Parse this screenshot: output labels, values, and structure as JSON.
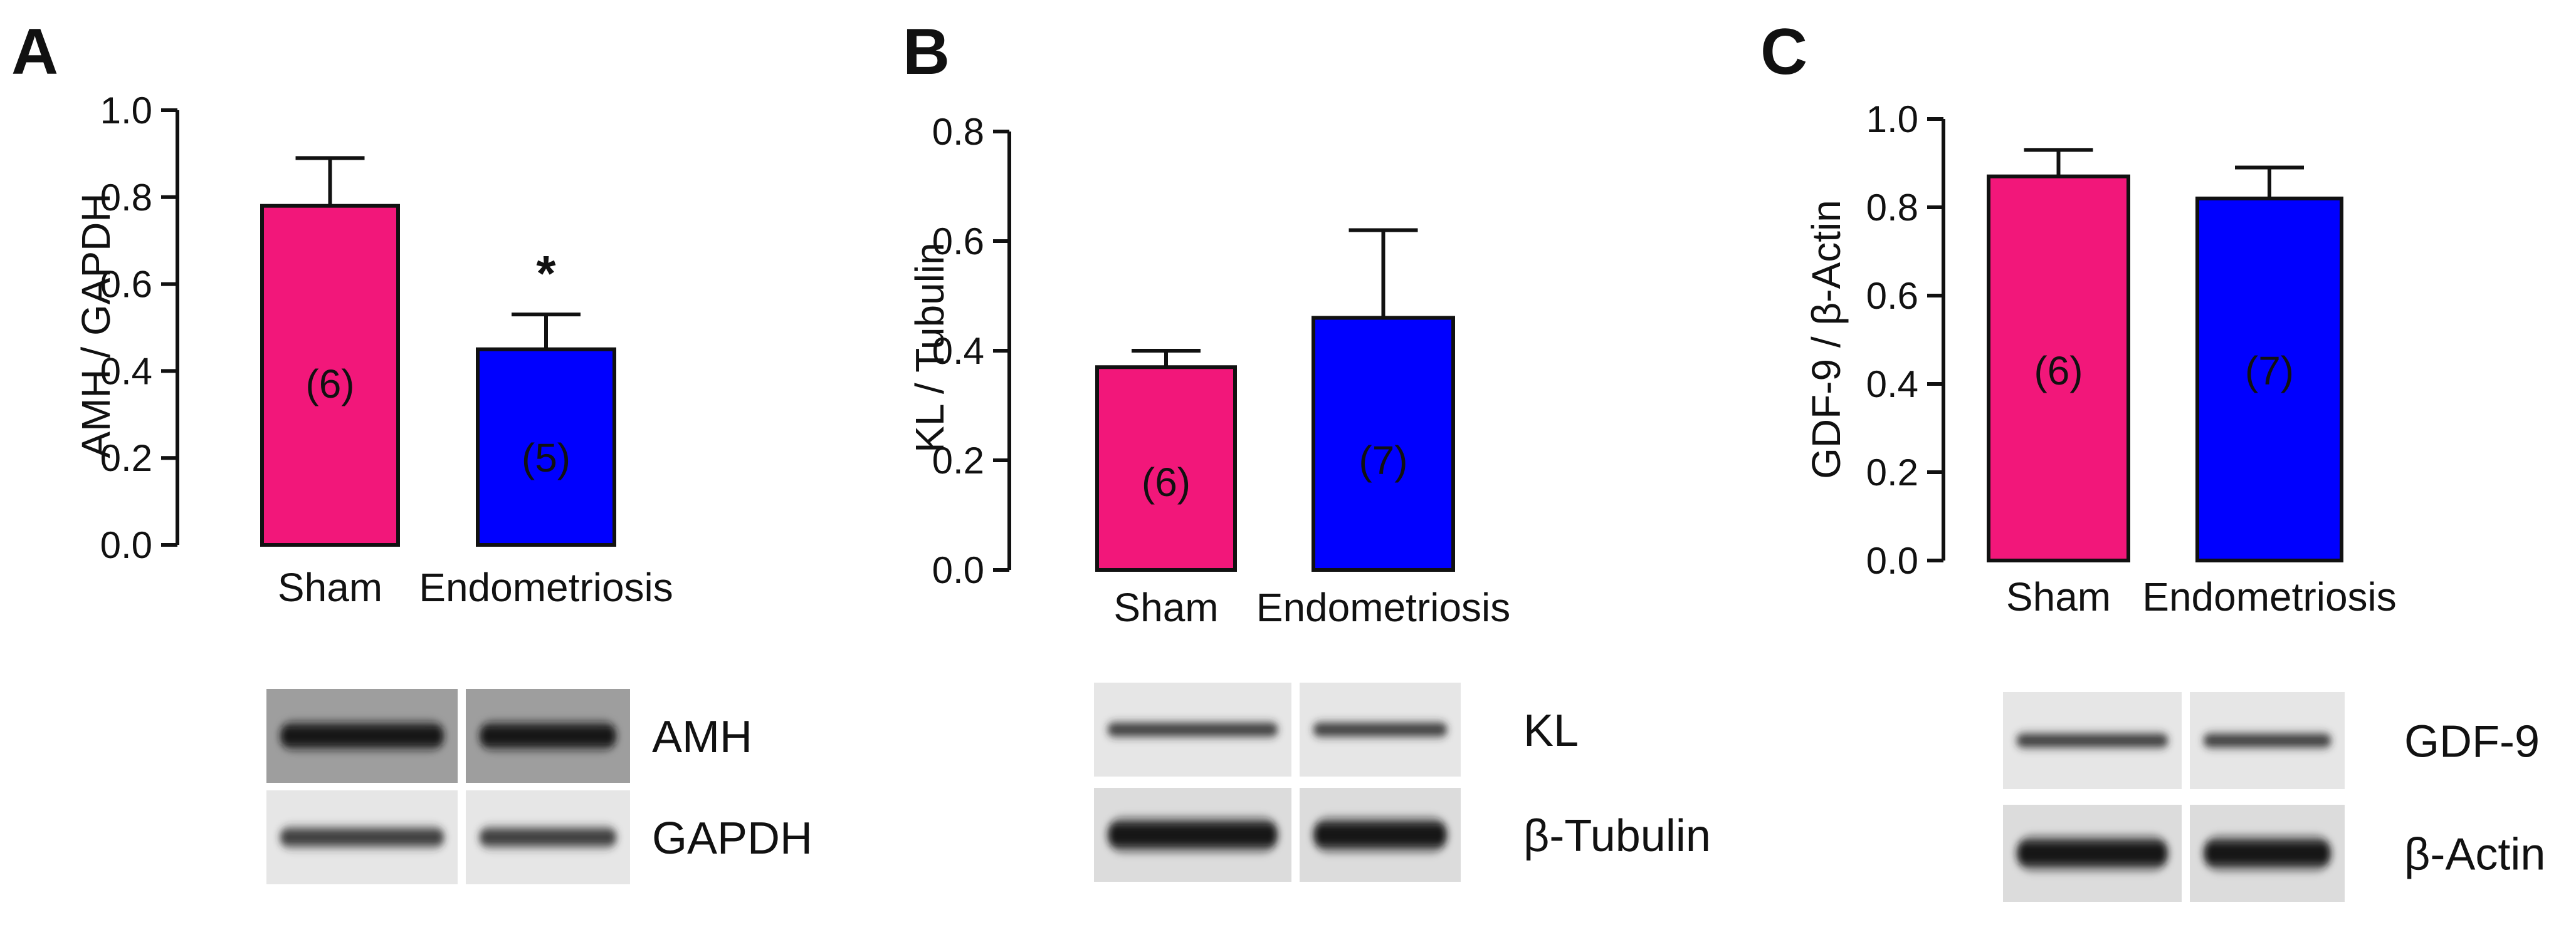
{
  "colors": {
    "sham": "#f2177a",
    "endometriosis": "#0000ff",
    "axis": "#111111"
  },
  "chart_data": [
    {
      "type": "bar",
      "panel": "A",
      "ylabel": "AMH / GAPDH",
      "ylim": [
        0,
        1.0
      ],
      "yticks": [
        "0.0",
        "0.2",
        "0.4",
        "0.6",
        "0.8",
        "1.0"
      ],
      "ytick_values": [
        0,
        0.2,
        0.4,
        0.6,
        0.8,
        1.0
      ],
      "categories": [
        "Sham",
        "Endometriosis"
      ],
      "values": [
        0.78,
        0.45
      ],
      "errors": [
        0.11,
        0.08
      ],
      "n_labels": [
        "(6)",
        "(5)"
      ],
      "n_label_values": [
        0.37,
        0.2
      ],
      "significance": [
        "",
        "*"
      ],
      "blots": [
        {
          "label": "AMH",
          "style": "gray-dark"
        },
        {
          "label": "GAPDH",
          "style": "light"
        }
      ]
    },
    {
      "type": "bar",
      "panel": "B",
      "ylabel": "KL / Tubulin",
      "ylim": [
        0,
        0.8
      ],
      "yticks": [
        "0.0",
        "0.2",
        "0.4",
        "0.6",
        "0.8"
      ],
      "ytick_values": [
        0,
        0.2,
        0.4,
        0.6,
        0.8
      ],
      "categories": [
        "Sham",
        "Endometriosis"
      ],
      "values": [
        0.37,
        0.46
      ],
      "errors": [
        0.03,
        0.16
      ],
      "n_labels": [
        "(6)",
        "(7)"
      ],
      "n_label_values": [
        0.16,
        0.2
      ],
      "significance": [
        "",
        ""
      ],
      "blots": [
        {
          "label": "KL",
          "style": "light"
        },
        {
          "label": "β-Tubulin",
          "style": "light-dark"
        }
      ]
    },
    {
      "type": "bar",
      "panel": "C",
      "ylabel": "GDF-9 / β-Actin",
      "ylim": [
        0,
        1.0
      ],
      "yticks": [
        "0.0",
        "0.2",
        "0.4",
        "0.6",
        "0.8",
        "1.0"
      ],
      "ytick_values": [
        0,
        0.2,
        0.4,
        0.6,
        0.8,
        1.0
      ],
      "categories": [
        "Sham",
        "Endometriosis"
      ],
      "values": [
        0.87,
        0.82
      ],
      "errors": [
        0.06,
        0.07
      ],
      "n_labels": [
        "(6)",
        "(7)"
      ],
      "n_label_values": [
        0.43,
        0.43
      ],
      "significance": [
        "",
        ""
      ],
      "blots": [
        {
          "label": "GDF-9",
          "style": "light"
        },
        {
          "label": "β-Actin",
          "style": "light-dark"
        }
      ]
    }
  ]
}
